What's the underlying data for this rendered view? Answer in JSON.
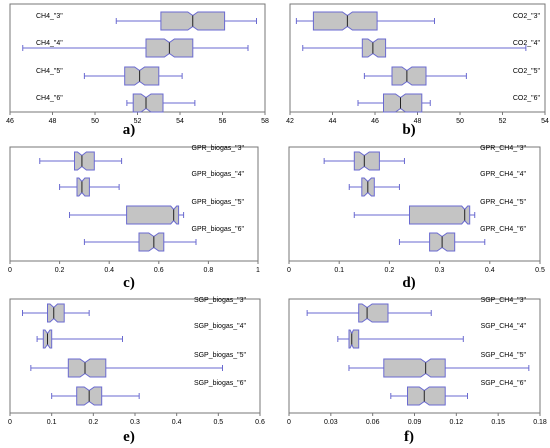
{
  "chart_data": [
    {
      "panel": "a)",
      "type": "box",
      "xlim": [
        46,
        58
      ],
      "ticks": [
        46,
        48,
        50,
        52,
        54,
        56,
        58
      ],
      "tick_decimals": 0,
      "categories": [
        "CH4_\"3\"",
        "CH4_\"4\"",
        "CH4_\"5\"",
        "CH4_\"6\""
      ],
      "boxes": [
        {
          "min": 51.0,
          "q1": 53.1,
          "median": 54.6,
          "q3": 56.1,
          "max": 57.6
        },
        {
          "min": 46.6,
          "q1": 52.4,
          "median": 53.5,
          "q3": 54.6,
          "max": 57.2
        },
        {
          "min": 49.5,
          "q1": 51.4,
          "median": 52.1,
          "q3": 53.0,
          "max": 54.1
        },
        {
          "min": 51.5,
          "q1": 51.8,
          "median": 52.4,
          "q3": 53.2,
          "max": 54.7
        }
      ]
    },
    {
      "panel": "b)",
      "type": "box",
      "xlim": [
        42,
        54
      ],
      "ticks": [
        42,
        44,
        46,
        48,
        50,
        52,
        54
      ],
      "tick_decimals": 0,
      "categories": [
        "CO2_\"3\"",
        "CO2_\"4\"",
        "CO2_\"5\"",
        "CO2_\"6\""
      ],
      "boxes": [
        {
          "min": 42.3,
          "q1": 43.1,
          "median": 44.7,
          "q3": 46.1,
          "max": 48.8
        },
        {
          "min": 42.6,
          "q1": 45.4,
          "median": 45.9,
          "q3": 46.5,
          "max": 53.1
        },
        {
          "min": 45.5,
          "q1": 46.8,
          "median": 47.5,
          "q3": 48.4,
          "max": 50.3
        },
        {
          "min": 45.2,
          "q1": 46.4,
          "median": 47.2,
          "q3": 48.2,
          "max": 48.6
        }
      ]
    },
    {
      "panel": "c)",
      "type": "box",
      "xlim": [
        0,
        1
      ],
      "ticks": [
        0,
        0.2,
        0.4,
        0.6,
        0.8,
        1
      ],
      "tick_decimals": 1,
      "categories": [
        "GPR_biogas_\"3\"",
        "GPR_biogas_\"4\"",
        "GPR_biogas_\"5\"",
        "GPR_biogas_\"6\""
      ],
      "boxes": [
        {
          "min": 0.12,
          "q1": 0.26,
          "median": 0.29,
          "q3": 0.34,
          "max": 0.45
        },
        {
          "min": 0.2,
          "q1": 0.27,
          "median": 0.29,
          "q3": 0.32,
          "max": 0.44
        },
        {
          "min": 0.24,
          "q1": 0.47,
          "median": 0.66,
          "q3": 0.68,
          "max": 0.7
        },
        {
          "min": 0.3,
          "q1": 0.52,
          "median": 0.58,
          "q3": 0.62,
          "max": 0.75
        }
      ]
    },
    {
      "panel": "d)",
      "type": "box",
      "xlim": [
        0,
        0.5
      ],
      "ticks": [
        0,
        0.1,
        0.2,
        0.3,
        0.4,
        0.5
      ],
      "tick_decimals": 1,
      "categories": [
        "GPR_CH4_\"3\"",
        "GPR_CH4_\"4\"",
        "GPR_CH4_\"5\"",
        "GPR_CH4_\"6\""
      ],
      "boxes": [
        {
          "min": 0.07,
          "q1": 0.13,
          "median": 0.15,
          "q3": 0.18,
          "max": 0.23
        },
        {
          "min": 0.12,
          "q1": 0.145,
          "median": 0.157,
          "q3": 0.17,
          "max": 0.22
        },
        {
          "min": 0.13,
          "q1": 0.24,
          "median": 0.35,
          "q3": 0.36,
          "max": 0.37
        },
        {
          "min": 0.22,
          "q1": 0.28,
          "median": 0.305,
          "q3": 0.33,
          "max": 0.39
        }
      ]
    },
    {
      "panel": "e)",
      "type": "box",
      "xlim": [
        0,
        0.6
      ],
      "ticks": [
        0,
        0.1,
        0.2,
        0.3,
        0.4,
        0.5,
        0.6
      ],
      "tick_decimals": 1,
      "categories": [
        "SGP_biogas_\"3\"",
        "SGP_biogas_\"4\"",
        "SGP_biogas_\"5\"",
        "SGP_biogas_\"6\""
      ],
      "boxes": [
        {
          "min": 0.03,
          "q1": 0.09,
          "median": 0.105,
          "q3": 0.13,
          "max": 0.19
        },
        {
          "min": 0.065,
          "q1": 0.08,
          "median": 0.09,
          "q3": 0.1,
          "max": 0.27
        },
        {
          "min": 0.05,
          "q1": 0.14,
          "median": 0.18,
          "q3": 0.23,
          "max": 0.51
        },
        {
          "min": 0.1,
          "q1": 0.16,
          "median": 0.19,
          "q3": 0.22,
          "max": 0.31
        }
      ]
    },
    {
      "panel": "f)",
      "type": "box",
      "xlim": [
        0,
        0.18
      ],
      "ticks": [
        0,
        0.03,
        0.06,
        0.09,
        0.12,
        0.15,
        0.18
      ],
      "tick_decimals": 2,
      "categories": [
        "SGP_CH4_\"3\"",
        "SGP_CH4_\"4\"",
        "SGP_CH4_\"5\"",
        "SGP_CH4_\"6\""
      ],
      "boxes": [
        {
          "min": 0.013,
          "q1": 0.05,
          "median": 0.056,
          "q3": 0.071,
          "max": 0.102
        },
        {
          "min": 0.035,
          "q1": 0.043,
          "median": 0.045,
          "q3": 0.05,
          "max": 0.125
        },
        {
          "min": 0.043,
          "q1": 0.068,
          "median": 0.098,
          "q3": 0.112,
          "max": 0.172
        },
        {
          "min": 0.073,
          "q1": 0.085,
          "median": 0.097,
          "q3": 0.112,
          "max": 0.128
        }
      ]
    }
  ],
  "colors": {
    "box_fill": "#c4c4c4",
    "box_stroke": "#6a6ad0",
    "median": "#222222",
    "frame": "#777777"
  }
}
